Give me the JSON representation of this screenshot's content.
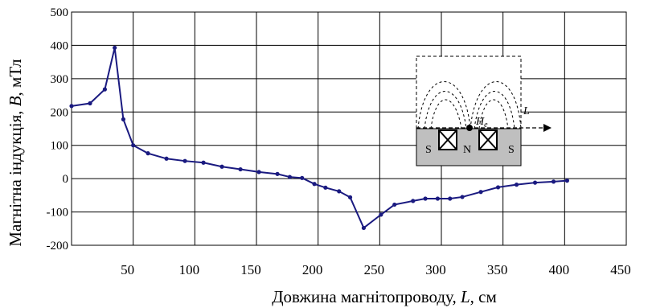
{
  "chart_data": {
    "type": "line",
    "xlabel": "Довжина магнітопроводу, L, см",
    "ylabel": "Магнітна індукція, B, мТл",
    "xlabel_parts": [
      "Довжина магнітопроводу, ",
      "L",
      ", см"
    ],
    "ylabel_parts": [
      "Магнітна індукція, ",
      "B",
      ", мТл"
    ],
    "x_ticks": [
      50,
      100,
      150,
      200,
      250,
      300,
      350,
      400,
      450
    ],
    "y_ticks": [
      500,
      400,
      300,
      200,
      100,
      0,
      -100,
      -200
    ],
    "xlim": [
      0,
      450
    ],
    "ylim": [
      -200,
      500
    ],
    "grid": true,
    "series": [
      {
        "color": "#1a1a80",
        "x": [
          0,
          15,
          27,
          35,
          42,
          50,
          62,
          77,
          92,
          107,
          122,
          137,
          152,
          167,
          177,
          187,
          197,
          206,
          217,
          226,
          237,
          251,
          262,
          277,
          287,
          297,
          307,
          317,
          332,
          346,
          361,
          376,
          391,
          402
        ],
        "y": [
          218,
          226,
          268,
          393,
          178,
          100,
          76,
          60,
          53,
          48,
          36,
          28,
          20,
          14,
          5,
          2,
          -16,
          -27,
          -38,
          -56,
          -148,
          -108,
          -78,
          -67,
          -60,
          -60,
          -60,
          -55,
          -40,
          -26,
          -18,
          -12,
          -9,
          -6
        ]
      }
    ]
  },
  "inset": {
    "pole_left": "S",
    "pole_center": "N",
    "pole_right": "S",
    "field_label": "H",
    "field_subscript": "e",
    "axis_label": "L"
  }
}
